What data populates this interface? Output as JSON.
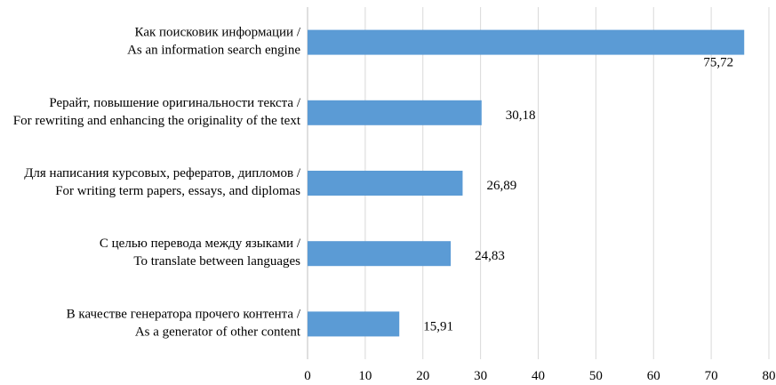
{
  "chart_data": {
    "type": "bar",
    "orientation": "horizontal",
    "categories": [
      [
        "Как поисковик информации /",
        "As an information search engine"
      ],
      [
        "Рерайт, повышение оригинальности текста /",
        "For rewriting and enhancing the originality of the text"
      ],
      [
        "Для написания курсовых, рефератов, дипломов /",
        "For writing term papers, essays, and diplomas"
      ],
      [
        "С целью перевода между языками /",
        "To translate between languages"
      ],
      [
        "В качестве генератора прочего контента /",
        "As a generator of other content"
      ]
    ],
    "values": [
      75.72,
      30.18,
      26.89,
      24.83,
      15.91
    ],
    "value_labels": [
      "75,72",
      "30,18",
      "26,89",
      "24,83",
      "15,91"
    ],
    "xlim": [
      0,
      80
    ],
    "xticks": [
      0,
      10,
      20,
      30,
      40,
      50,
      60,
      70,
      80
    ],
    "grid": true,
    "legend": "none",
    "bar_color": "#5b9bd5"
  }
}
